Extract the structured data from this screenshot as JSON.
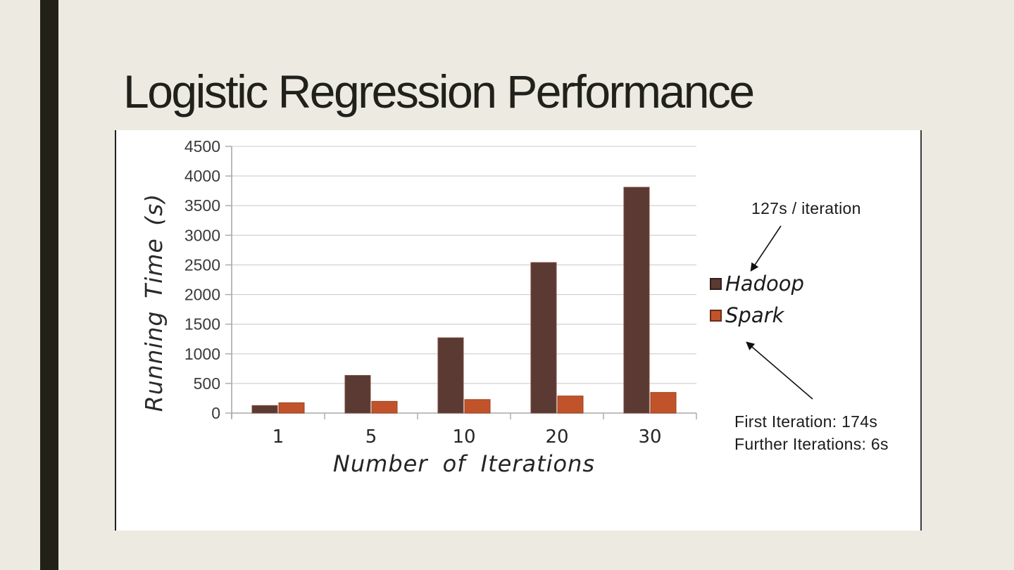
{
  "slide": {
    "title": "Logistic Regression Performance",
    "background_color": "#ECEAE1",
    "accent_bar_color": "#212117"
  },
  "chart_data": {
    "type": "bar",
    "title": "",
    "categories": [
      "1",
      "5",
      "10",
      "20",
      "30"
    ],
    "series": [
      {
        "name": "Hadoop",
        "color": "#5A3A33",
        "values": [
          127,
          635,
          1270,
          2540,
          3810
        ]
      },
      {
        "name": "Spark",
        "color": "#C1532B",
        "values": [
          174,
          198,
          228,
          288,
          348
        ]
      }
    ],
    "xlabel": "Number of Iterations",
    "ylabel": "Running Time (s)",
    "ylim": [
      0,
      4500
    ],
    "ytick_step": 500,
    "grid": true,
    "legend_position": "right",
    "gridline_color": "#CDCDCD",
    "axis_color": "#A8A8A8",
    "tick_label_color": "#3A3A3A"
  },
  "annotations": {
    "hadoop_note": "127s / iteration",
    "spark_note_line1": "First Iteration: 174s",
    "spark_note_line2": "Further Iterations: 6s"
  }
}
